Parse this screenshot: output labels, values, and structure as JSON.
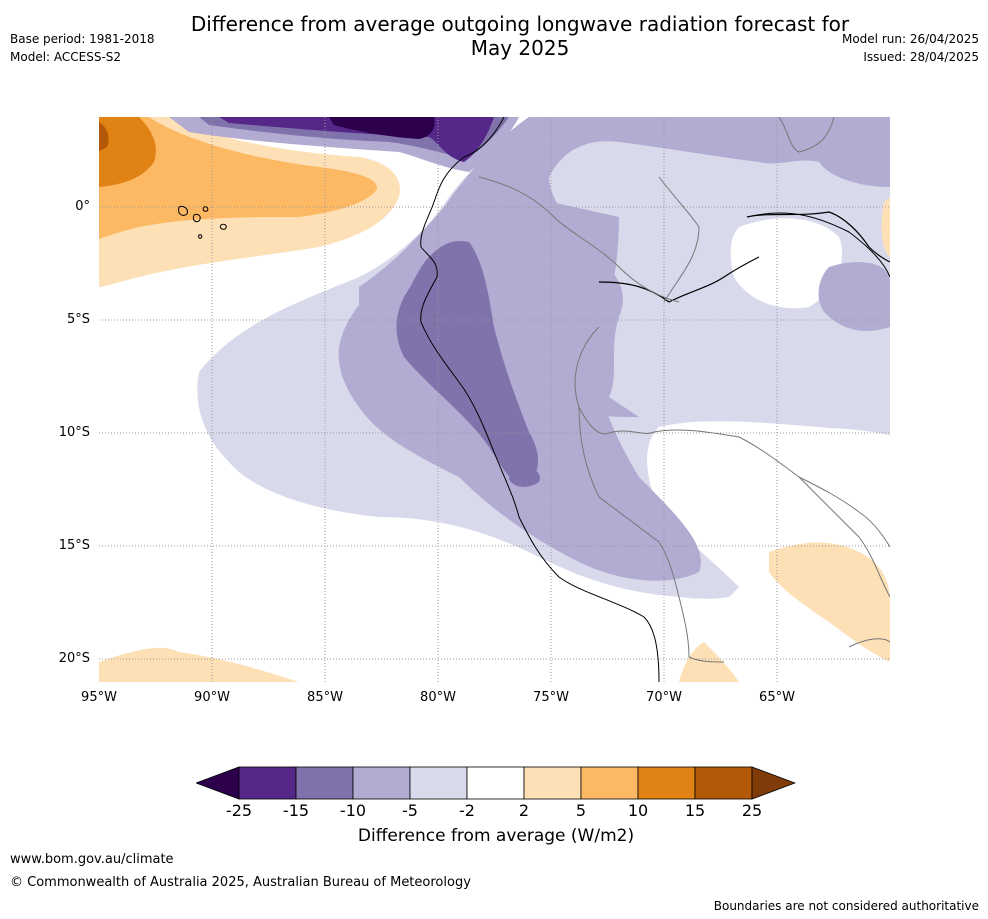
{
  "title_line1": "Difference from average outgoing longwave radiation forecast for",
  "title_line2": "May 2025",
  "base_period": "Base period: 1981-2018",
  "model": "Model: ACCESS-S2",
  "model_run": "Model run: 26/04/2025",
  "issued": "Issued: 28/04/2025",
  "axes": {
    "x_ticks": [
      "95°W",
      "90°W",
      "85°W",
      "80°W",
      "75°W",
      "70°W",
      "65°W"
    ],
    "y_ticks": [
      "0°",
      "5°S",
      "10°S",
      "15°S",
      "20°S"
    ]
  },
  "colorbar": {
    "label": "Difference from average (W/m2)",
    "ticks": [
      "-25",
      "-15",
      "-10",
      "-5",
      "-2",
      "2",
      "5",
      "10",
      "15",
      "25"
    ],
    "colors": [
      "#2d004b",
      "#542788",
      "#8073ac",
      "#b2abd2",
      "#d8daeb",
      "#ffffff",
      "#fee0b6",
      "#fdb863",
      "#e08214",
      "#b35806",
      "#7f3b08"
    ]
  },
  "footer": {
    "url": "www.bom.gov.au/climate",
    "copyright": "© Commonwealth of Australia 2025, Australian Bureau of Meteorology",
    "note": "Boundaries are not considered authoritative"
  }
}
